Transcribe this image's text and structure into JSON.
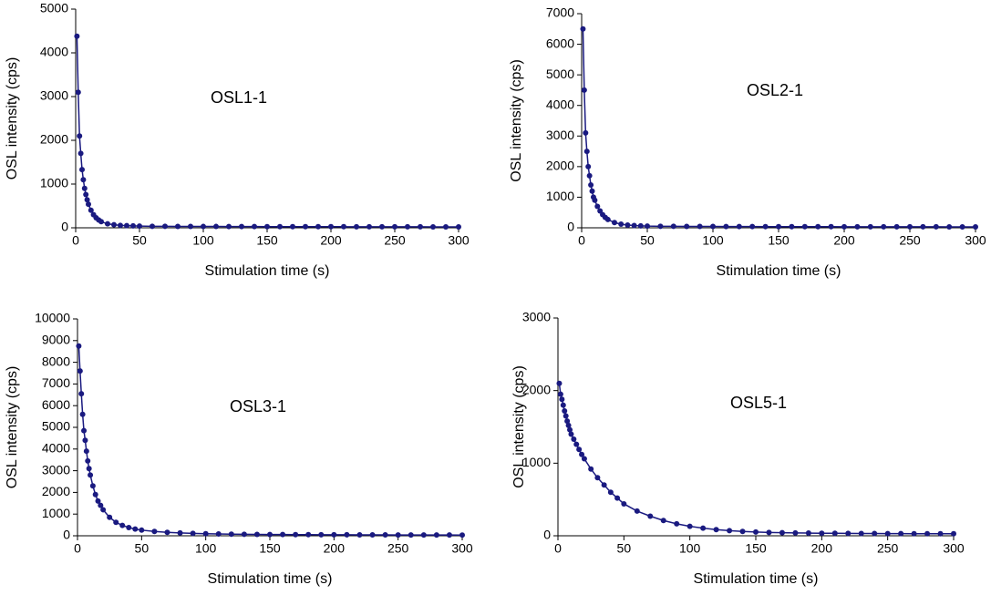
{
  "chart_data": [
    {
      "type": "line",
      "annotation": "OSL1-1",
      "xlabel": "Stimulation time (s)",
      "ylabel": "OSL intensity (cps)",
      "color": "#1a1a80",
      "xlim": [
        0,
        300
      ],
      "xticks": [
        0,
        50,
        100,
        150,
        200,
        250,
        300
      ],
      "ylim": [
        0,
        5000
      ],
      "yticks": [
        0,
        1000,
        2000,
        3000,
        4000,
        5000
      ],
      "x": [
        1,
        2,
        3,
        4,
        5,
        6,
        7,
        8,
        9,
        10,
        12,
        14,
        16,
        18,
        20,
        25,
        30,
        35,
        40,
        45,
        50,
        60,
        70,
        80,
        90,
        100,
        110,
        120,
        130,
        140,
        150,
        160,
        170,
        180,
        190,
        200,
        210,
        220,
        230,
        240,
        250,
        260,
        270,
        280,
        290,
        300
      ],
      "values": [
        4380,
        3100,
        2100,
        1700,
        1330,
        1100,
        900,
        760,
        640,
        540,
        400,
        300,
        230,
        180,
        140,
        90,
        70,
        55,
        50,
        45,
        40,
        35,
        33,
        32,
        31,
        30,
        30,
        29,
        28,
        28,
        27,
        27,
        26,
        26,
        25,
        25,
        25,
        24,
        24,
        24,
        23,
        23,
        23,
        22,
        22,
        22
      ]
    },
    {
      "type": "line",
      "annotation": "OSL2-1",
      "xlabel": "Stimulation time (s)",
      "ylabel": "OSL intensity (cps)",
      "color": "#1a1a80",
      "xlim": [
        0,
        300
      ],
      "xticks": [
        0,
        50,
        100,
        150,
        200,
        250,
        300
      ],
      "ylim": [
        0,
        7000
      ],
      "yticks": [
        0,
        1000,
        2000,
        3000,
        4000,
        5000,
        6000,
        7000
      ],
      "x": [
        1,
        2,
        3,
        4,
        5,
        6,
        7,
        8,
        9,
        10,
        12,
        14,
        16,
        18,
        20,
        25,
        30,
        35,
        40,
        45,
        50,
        60,
        70,
        80,
        90,
        100,
        110,
        120,
        130,
        140,
        150,
        160,
        170,
        180,
        190,
        200,
        210,
        220,
        230,
        240,
        250,
        260,
        270,
        280,
        290,
        300
      ],
      "values": [
        6500,
        4500,
        3100,
        2500,
        2000,
        1700,
        1400,
        1200,
        1000,
        900,
        700,
        550,
        430,
        340,
        270,
        170,
        120,
        90,
        75,
        65,
        55,
        50,
        48,
        46,
        44,
        43,
        42,
        41,
        40,
        39,
        38,
        38,
        37,
        36,
        36,
        35,
        35,
        34,
        34,
        33,
        33,
        32,
        32,
        31,
        31,
        30
      ]
    },
    {
      "type": "line",
      "annotation": "OSL3-1",
      "xlabel": "Stimulation time (s)",
      "ylabel": "OSL intensity (cps)",
      "color": "#1a1a80",
      "xlim": [
        0,
        300
      ],
      "xticks": [
        0,
        50,
        100,
        150,
        200,
        250,
        300
      ],
      "ylim": [
        0,
        10000
      ],
      "yticks": [
        0,
        1000,
        2000,
        3000,
        4000,
        5000,
        6000,
        7000,
        8000,
        9000,
        10000
      ],
      "x": [
        1,
        2,
        3,
        4,
        5,
        6,
        7,
        8,
        9,
        10,
        12,
        14,
        16,
        18,
        20,
        25,
        30,
        35,
        40,
        45,
        50,
        60,
        70,
        80,
        90,
        100,
        110,
        120,
        130,
        140,
        150,
        160,
        170,
        180,
        190,
        200,
        210,
        220,
        230,
        240,
        250,
        260,
        270,
        280,
        290,
        300
      ],
      "values": [
        8750,
        7600,
        6550,
        5600,
        4850,
        4400,
        3900,
        3450,
        3100,
        2800,
        2300,
        1900,
        1600,
        1400,
        1200,
        850,
        620,
        480,
        380,
        310,
        260,
        200,
        160,
        130,
        110,
        95,
        85,
        75,
        70,
        65,
        60,
        57,
        54,
        51,
        49,
        47,
        45,
        43,
        42,
        40,
        39,
        38,
        37,
        36,
        35,
        34
      ]
    },
    {
      "type": "line",
      "annotation": "OSL5-1",
      "xlabel": "Stimulation time (s)",
      "ylabel": "OSL intensity (cps)",
      "color": "#1a1a80",
      "xlim": [
        0,
        300
      ],
      "xticks": [
        0,
        50,
        100,
        150,
        200,
        250,
        300
      ],
      "ylim": [
        0,
        3000
      ],
      "yticks": [
        0,
        1000,
        2000,
        3000
      ],
      "x": [
        1,
        2,
        3,
        4,
        5,
        6,
        7,
        8,
        9,
        10,
        12,
        14,
        16,
        18,
        20,
        25,
        30,
        35,
        40,
        45,
        50,
        60,
        70,
        80,
        90,
        100,
        110,
        120,
        130,
        140,
        150,
        160,
        170,
        180,
        190,
        200,
        210,
        220,
        230,
        240,
        250,
        260,
        270,
        280,
        290,
        300
      ],
      "values": [
        2100,
        1950,
        1880,
        1800,
        1720,
        1650,
        1580,
        1520,
        1460,
        1400,
        1330,
        1260,
        1190,
        1120,
        1060,
        920,
        800,
        700,
        600,
        520,
        440,
        340,
        270,
        210,
        165,
        130,
        105,
        85,
        70,
        60,
        52,
        46,
        42,
        39,
        37,
        35,
        34,
        33,
        32,
        31,
        30,
        30,
        29,
        29,
        28,
        28
      ]
    }
  ]
}
